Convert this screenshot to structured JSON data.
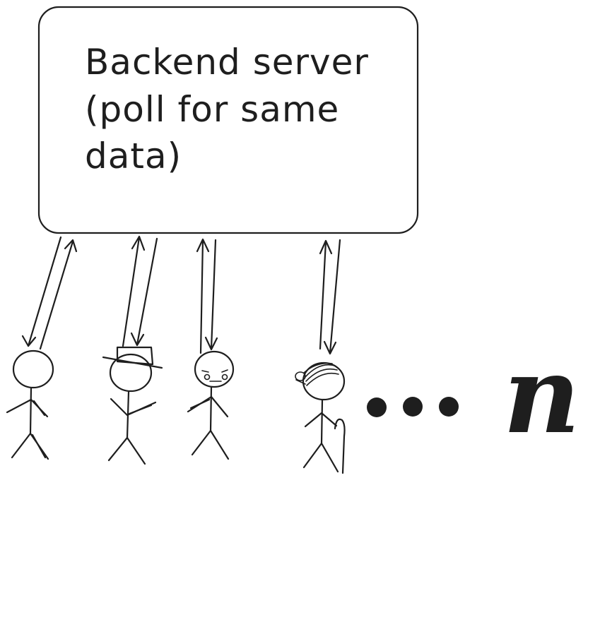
{
  "server": {
    "label_lines": [
      "Backend server",
      "(poll for same",
      "data)"
    ]
  },
  "clients": [
    {
      "variant": "plain"
    },
    {
      "variant": "hat"
    },
    {
      "variant": "worried-face"
    },
    {
      "variant": "elder-with-cane"
    }
  ],
  "more_indicator": {
    "ellipsis": "...",
    "count_label": "n"
  },
  "colors": {
    "ink": "#1e1e1e",
    "background": "#ffffff"
  }
}
